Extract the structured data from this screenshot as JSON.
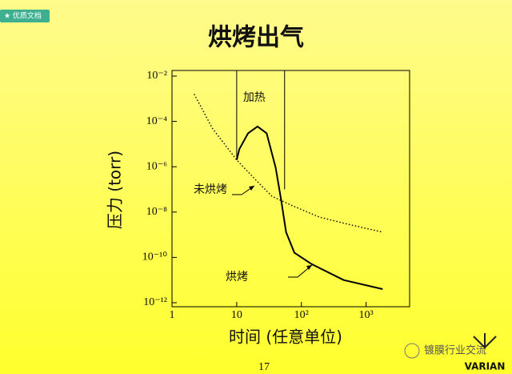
{
  "badge": "★ 优质文档",
  "page_number": "17",
  "watermark": "镀膜行业交流",
  "logo": "VARIAN",
  "chart_data": {
    "type": "line",
    "title": "烘烤出气",
    "x_label": "时间 (任意单位)",
    "y_label": "压力 (torr)",
    "x_scale": "log",
    "y_scale": "log",
    "xlim": [
      1,
      4700
    ],
    "ylim": [
      1e-12,
      0.01
    ],
    "xticks": [
      1,
      10,
      {
        "value": 100,
        "label": "10²"
      },
      {
        "value": 1000,
        "label": "10³"
      }
    ],
    "yticks": [
      {
        "value": 1e-12,
        "label": "10⁻¹²"
      },
      {
        "value": 1e-10,
        "label": "10⁻¹⁰"
      },
      {
        "value": 1e-08,
        "label": "10⁻⁸"
      },
      {
        "value": 1e-06,
        "label": "10⁻⁶"
      },
      {
        "value": 0.0001,
        "label": "10⁻⁴"
      },
      {
        "value": 0.01,
        "label": "10⁻²"
      }
    ],
    "heating_label": "加热",
    "heating_interval": [
      10,
      55
    ],
    "series": [
      {
        "name": "未烘烤",
        "color": "#000000",
        "dash": "dotted",
        "x": [
          2.2,
          4.2,
          10,
          20,
          35,
          70,
          190,
          500,
          1800
        ],
        "values": [
          0.0016,
          5e-05,
          2e-06,
          2.5e-07,
          5e-08,
          2e-08,
          6e-09,
          3e-09,
          1.3e-09
        ]
      },
      {
        "name": "烘烤",
        "color": "#000000",
        "dash": "solid",
        "x": [
          10,
          11,
          15,
          21,
          29,
          40,
          49,
          58,
          78,
          145,
          450,
          1800
        ],
        "values": [
          2e-06,
          6e-06,
          3e-05,
          6e-05,
          3e-05,
          9e-07,
          3e-08,
          1.3e-09,
          1.6e-10,
          5e-11,
          1e-11,
          4e-12
        ]
      }
    ]
  }
}
